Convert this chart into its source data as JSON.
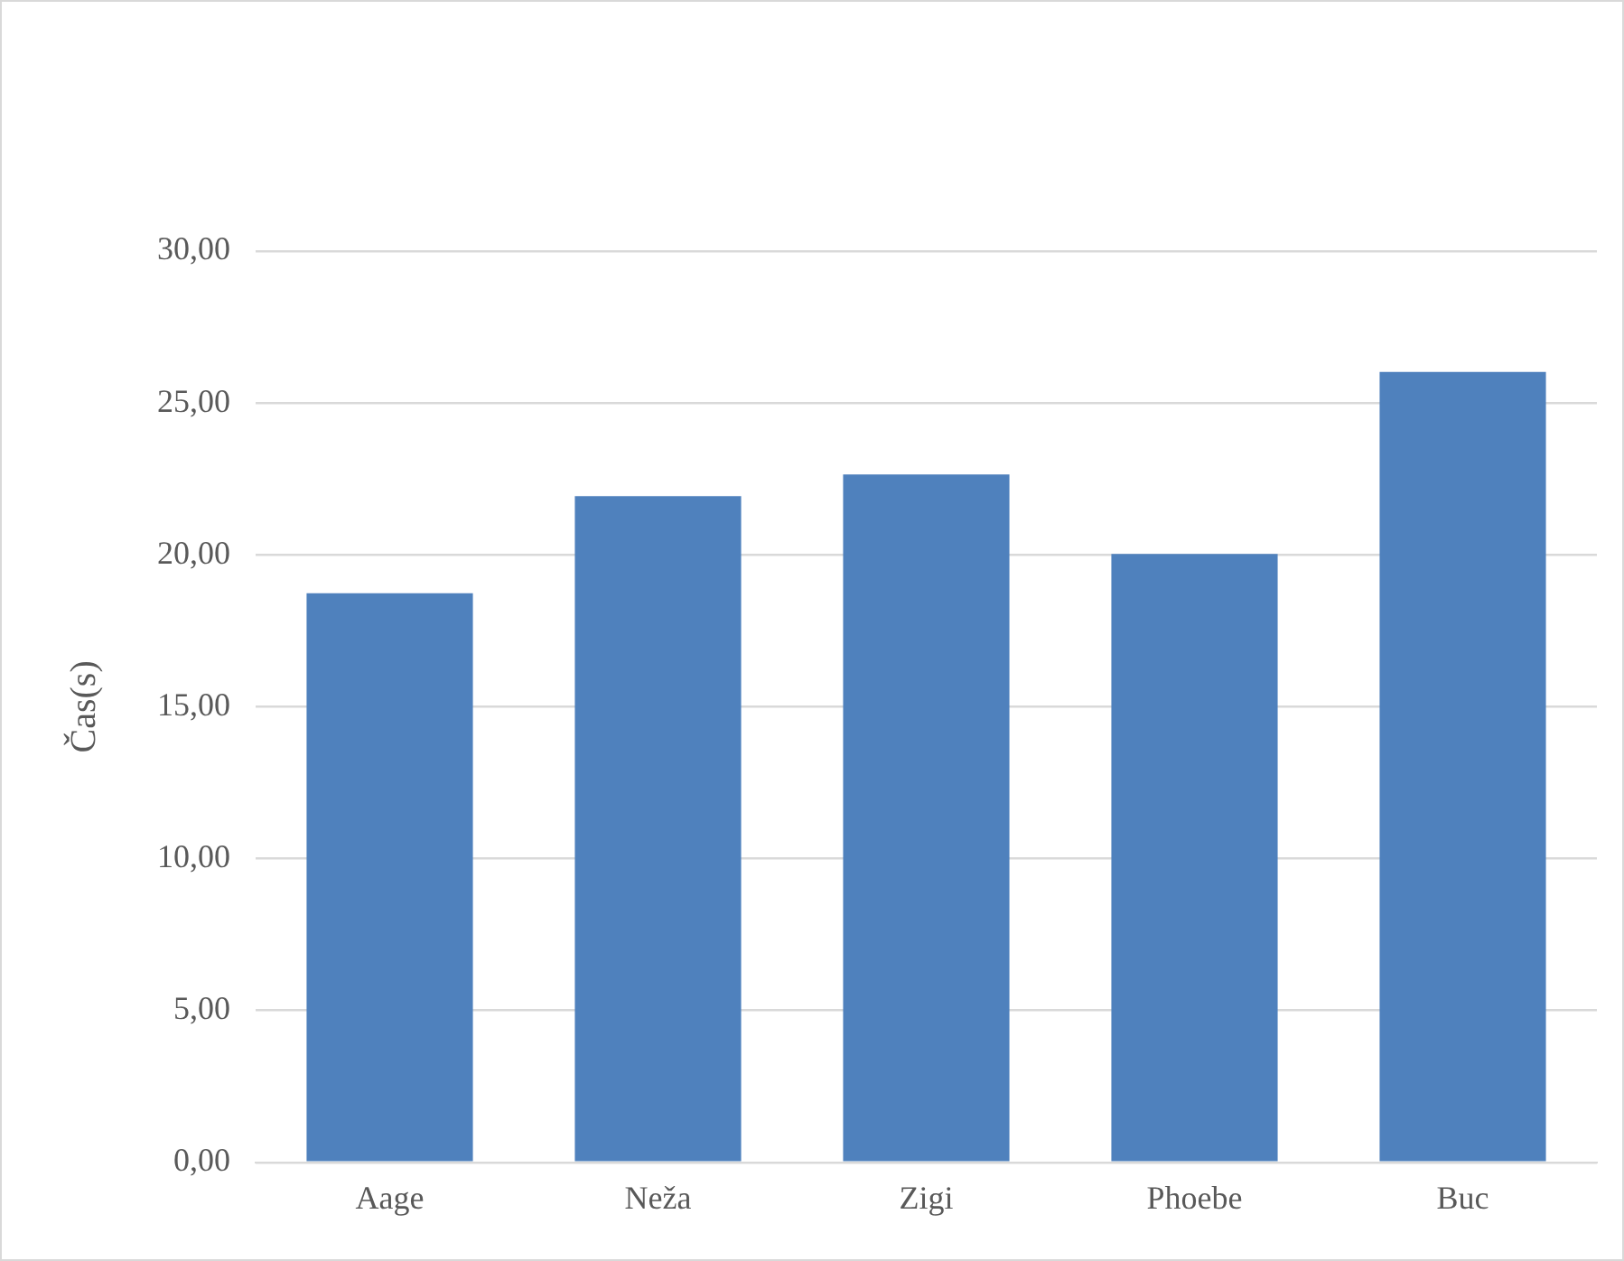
{
  "chart_data": {
    "type": "bar",
    "ylabel": "Čas(s)",
    "categories": [
      "Aage",
      "Neža",
      "Zigi",
      "Phoebe",
      "Buc"
    ],
    "values": [
      18.74,
      21.93,
      22.65,
      20.03,
      26.02
    ],
    "color": "#4f81bd",
    "ylim": [
      0,
      30
    ],
    "yticks": [
      {
        "value": 0,
        "label": "0,00"
      },
      {
        "value": 5,
        "label": "5,00"
      },
      {
        "value": 10,
        "label": "10,00"
      },
      {
        "value": 15,
        "label": "15,00"
      },
      {
        "value": 20,
        "label": "20,00"
      },
      {
        "value": 25,
        "label": "25,00"
      },
      {
        "value": 30,
        "label": "30,00"
      }
    ],
    "grid": "y",
    "legend": false
  }
}
